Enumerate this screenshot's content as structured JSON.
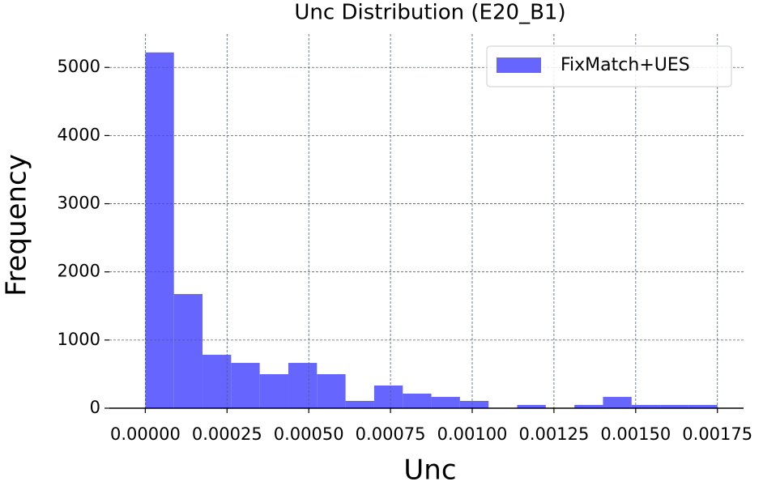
{
  "chart_data": {
    "type": "histogram",
    "title": "Unc Distribution (E20_B1)",
    "x_label": "Unc",
    "y_label": "Frequency",
    "bins": [
      0,
      8.75e-05,
      0.000175,
      0.0002625,
      0.00035,
      0.0004375,
      0.000525,
      0.0006125,
      0.0007,
      0.0007875,
      0.000875,
      0.0009625,
      0.00105,
      0.0011375,
      0.001225,
      0.0013125,
      0.0014,
      0.0014875,
      0.001575,
      0.0016625,
      0.00175
    ],
    "series": [
      {
        "name": "FixMatch+UES",
        "color": "#6666ff",
        "values": [
          5220,
          1675,
          784,
          665,
          499,
          665,
          499,
          107,
          333,
          214,
          166,
          107,
          0,
          48,
          0,
          48,
          166,
          48,
          48,
          48
        ]
      }
    ],
    "xlim": [
      -0.00011,
      0.00183
    ],
    "ylim": [
      0,
      5490
    ],
    "xticks": [
      {
        "value": 0,
        "label": "0.00000"
      },
      {
        "value": 0.00025,
        "label": "0.00025"
      },
      {
        "value": 0.0005,
        "label": "0.00050"
      },
      {
        "value": 0.00075,
        "label": "0.00075"
      },
      {
        "value": 0.001,
        "label": "0.00100"
      },
      {
        "value": 0.00125,
        "label": "0.00125"
      },
      {
        "value": 0.0015,
        "label": "0.00150"
      },
      {
        "value": 0.00175,
        "label": "0.00175"
      }
    ],
    "yticks": [
      0,
      1000,
      2000,
      3000,
      4000,
      5000
    ],
    "grid": true,
    "legend": "upper right"
  }
}
